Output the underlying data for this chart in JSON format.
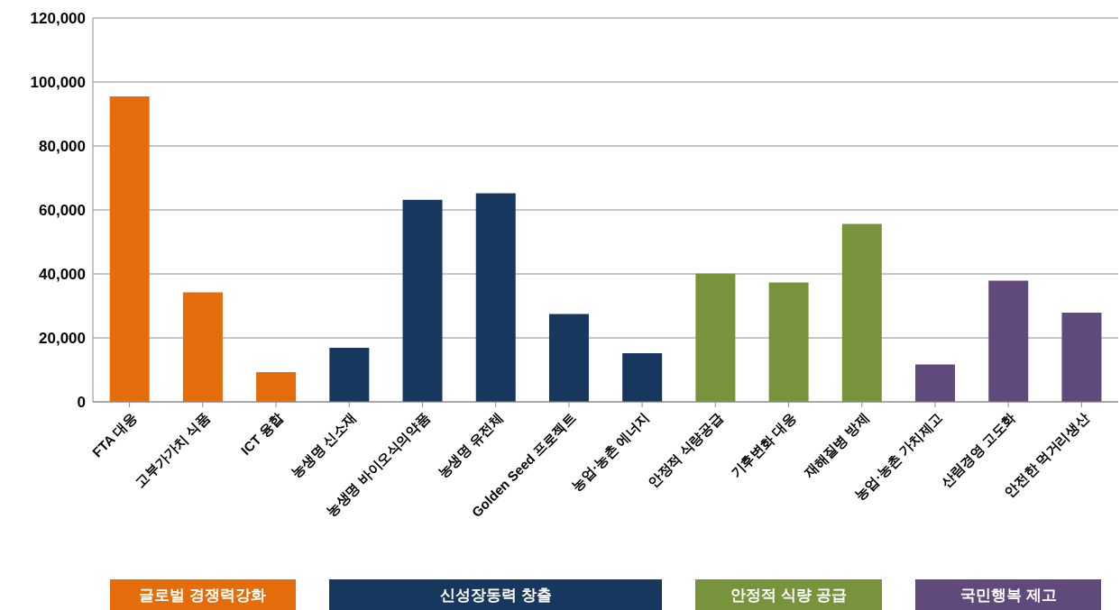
{
  "chart_data": {
    "type": "bar",
    "stacked": true,
    "categories": [
      "FTA 대응",
      "고부가가치 식품",
      "ICT 융합",
      "농생명 신소재",
      "농생명 바이오식의약품",
      "농생명 유전체",
      "Golden Seed 프로젝트",
      "농업·농촌 에너지",
      "안정적 식량공급",
      "기후변화 대응",
      "재해질병 방제",
      "농업·농촌 가치제고",
      "산림경영 고도화",
      "안전한 먹거리생산"
    ],
    "series": [
      {
        "name": "글로벌 경쟁력강화",
        "color": "#e46c0a",
        "values": [
          95500,
          34200,
          9300,
          null,
          null,
          null,
          null,
          null,
          null,
          null,
          null,
          null,
          null,
          null
        ]
      },
      {
        "name": "신성장동력 창출",
        "color": "#17375e",
        "values": [
          null,
          null,
          null,
          16900,
          63200,
          65200,
          27500,
          15200,
          null,
          null,
          null,
          null,
          null,
          null
        ]
      },
      {
        "name": "안정적 식량 공급",
        "color": "#77933c",
        "values": [
          null,
          null,
          null,
          null,
          null,
          null,
          null,
          null,
          40100,
          37300,
          55600,
          null,
          null,
          null
        ]
      },
      {
        "name": "국민행복 제고",
        "color": "#604a7b",
        "values": [
          null,
          null,
          null,
          null,
          null,
          null,
          null,
          null,
          null,
          null,
          null,
          11700,
          37900,
          27900
        ]
      }
    ],
    "ylim": [
      0,
      120000
    ],
    "yticks": [
      0,
      {
        "value": 20000,
        "label": "20,000"
      },
      {
        "value": 40000,
        "label": "40,000"
      },
      {
        "value": 60000,
        "label": "60,000"
      },
      {
        "value": 80000,
        "label": "80,000"
      },
      {
        "value": 100000,
        "label": "100,000"
      },
      {
        "value": 120000,
        "label": "120,000"
      }
    ],
    "grid": "y",
    "legend": "bottom"
  }
}
